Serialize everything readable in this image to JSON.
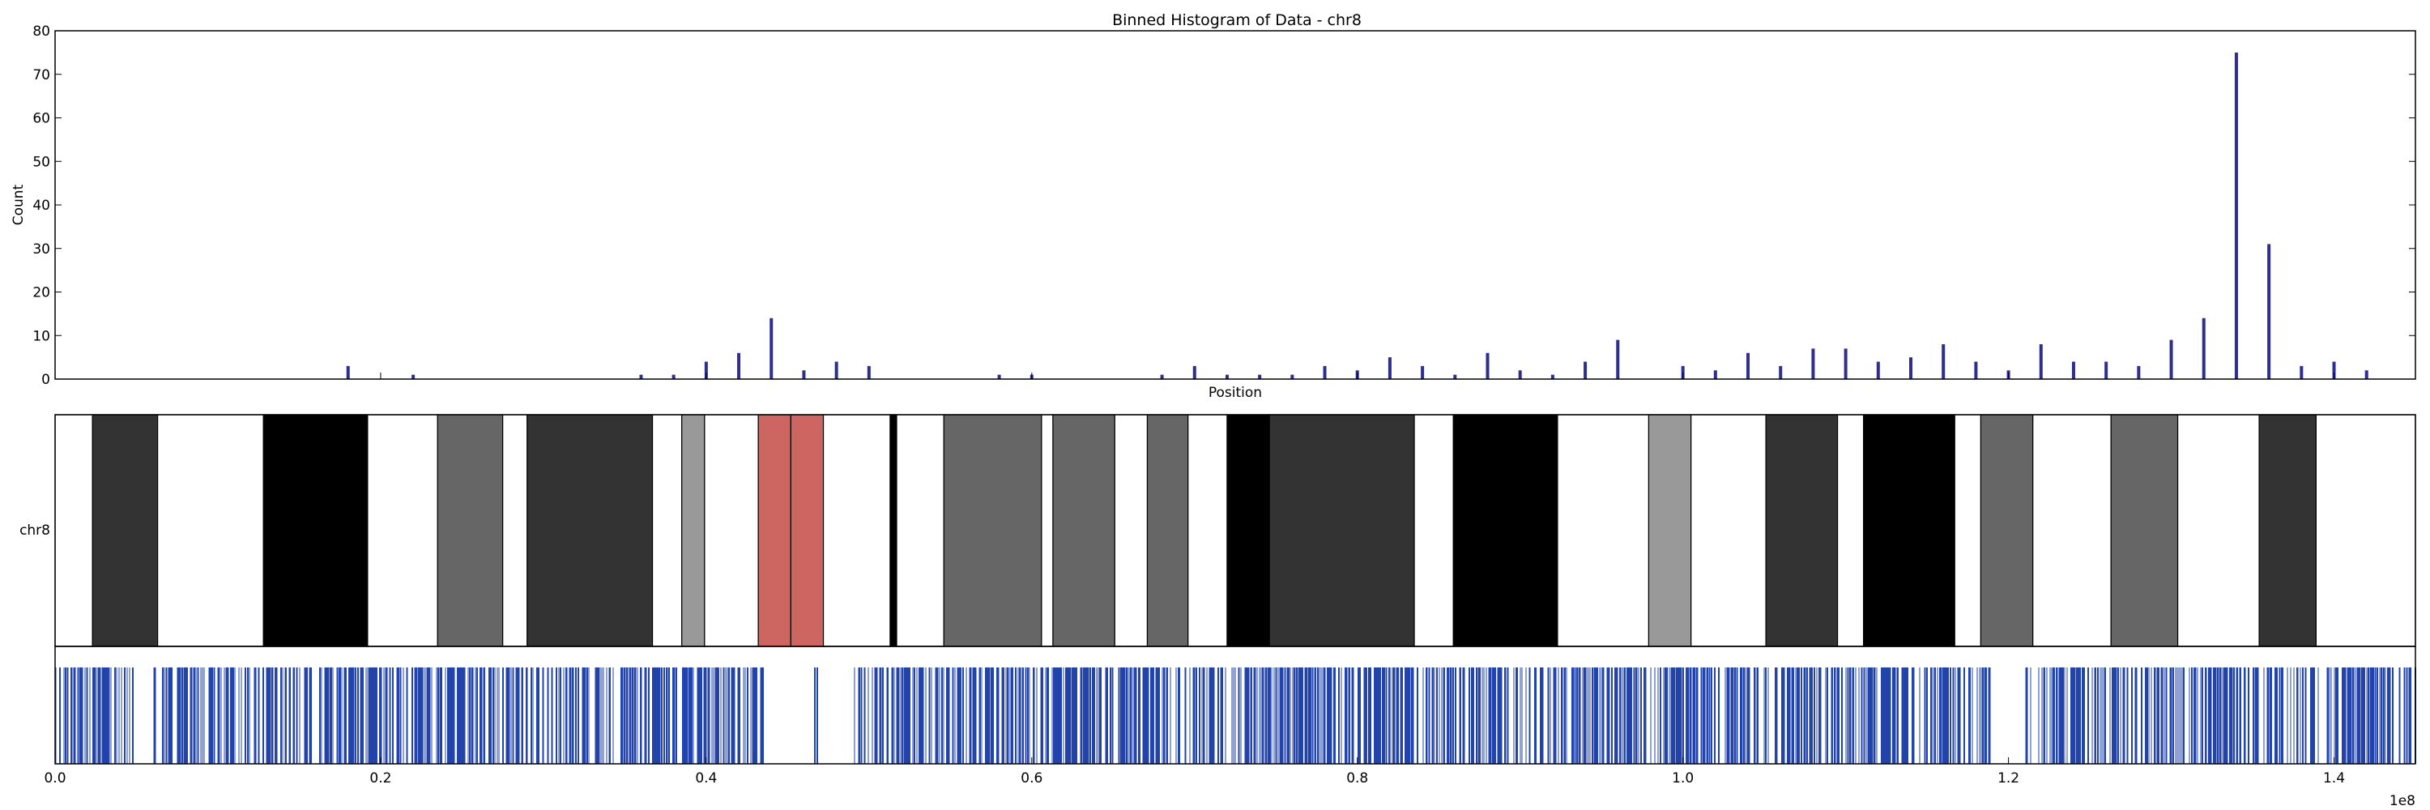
{
  "chart_data": {
    "type": "bar",
    "title": "Binned Histogram of Data - chr8",
    "xlabel": "Position",
    "ylabel": "Count",
    "chromosome_label": "chr8",
    "x_offset_label": "1e8",
    "xlim": [
      0,
      145000000
    ],
    "ylim": [
      0,
      80
    ],
    "y_ticks": [
      0,
      10,
      20,
      30,
      40,
      50,
      60,
      70,
      80
    ],
    "x_ticks": [
      0,
      20000000,
      40000000,
      60000000,
      80000000,
      100000000,
      120000000,
      140000000
    ],
    "x_tick_labels": [
      "0.0",
      "0.2",
      "0.4",
      "0.6",
      "0.8",
      "1.0",
      "1.2",
      "1.4"
    ],
    "bar_color": "#2e2e8f",
    "bins": [
      {
        "x": 18000000,
        "count": 3
      },
      {
        "x": 22000000,
        "count": 1
      },
      {
        "x": 36000000,
        "count": 1
      },
      {
        "x": 38000000,
        "count": 1
      },
      {
        "x": 40000000,
        "count": 4
      },
      {
        "x": 42000000,
        "count": 6
      },
      {
        "x": 44000000,
        "count": 14
      },
      {
        "x": 46000000,
        "count": 2
      },
      {
        "x": 48000000,
        "count": 4
      },
      {
        "x": 50000000,
        "count": 3
      },
      {
        "x": 58000000,
        "count": 1
      },
      {
        "x": 60000000,
        "count": 1
      },
      {
        "x": 68000000,
        "count": 1
      },
      {
        "x": 70000000,
        "count": 3
      },
      {
        "x": 72000000,
        "count": 1
      },
      {
        "x": 74000000,
        "count": 1
      },
      {
        "x": 76000000,
        "count": 1
      },
      {
        "x": 78000000,
        "count": 3
      },
      {
        "x": 80000000,
        "count": 2
      },
      {
        "x": 82000000,
        "count": 5
      },
      {
        "x": 84000000,
        "count": 3
      },
      {
        "x": 86000000,
        "count": 1
      },
      {
        "x": 88000000,
        "count": 6
      },
      {
        "x": 90000000,
        "count": 2
      },
      {
        "x": 92000000,
        "count": 1
      },
      {
        "x": 94000000,
        "count": 4
      },
      {
        "x": 96000000,
        "count": 9
      },
      {
        "x": 100000000,
        "count": 3
      },
      {
        "x": 102000000,
        "count": 2
      },
      {
        "x": 104000000,
        "count": 6
      },
      {
        "x": 106000000,
        "count": 3
      },
      {
        "x": 108000000,
        "count": 7
      },
      {
        "x": 110000000,
        "count": 7
      },
      {
        "x": 112000000,
        "count": 4
      },
      {
        "x": 114000000,
        "count": 5
      },
      {
        "x": 116000000,
        "count": 8
      },
      {
        "x": 118000000,
        "count": 4
      },
      {
        "x": 120000000,
        "count": 2
      },
      {
        "x": 122000000,
        "count": 8
      },
      {
        "x": 124000000,
        "count": 4
      },
      {
        "x": 126000000,
        "count": 4
      },
      {
        "x": 128000000,
        "count": 3
      },
      {
        "x": 130000000,
        "count": 9
      },
      {
        "x": 132000000,
        "count": 14
      },
      {
        "x": 134000000,
        "count": 75
      },
      {
        "x": 136000000,
        "count": 31
      },
      {
        "x": 138000000,
        "count": 3
      },
      {
        "x": 140000000,
        "count": 4
      },
      {
        "x": 142000000,
        "count": 2
      }
    ],
    "ideogram_bands": [
      {
        "start": 0,
        "end": 2300000,
        "color": "#ffffff"
      },
      {
        "start": 2300000,
        "end": 6300000,
        "color": "#333333"
      },
      {
        "start": 6300000,
        "end": 12800000,
        "color": "#ffffff"
      },
      {
        "start": 12800000,
        "end": 19200000,
        "color": "#000000"
      },
      {
        "start": 19200000,
        "end": 23500000,
        "color": "#ffffff"
      },
      {
        "start": 23500000,
        "end": 27500000,
        "color": "#666666"
      },
      {
        "start": 27500000,
        "end": 29000000,
        "color": "#ffffff"
      },
      {
        "start": 29000000,
        "end": 36700000,
        "color": "#333333"
      },
      {
        "start": 36700000,
        "end": 38500000,
        "color": "#ffffff"
      },
      {
        "start": 38500000,
        "end": 39900000,
        "color": "#999999"
      },
      {
        "start": 39900000,
        "end": 43200000,
        "color": "#ffffff"
      },
      {
        "start": 43200000,
        "end": 45200000,
        "color": "#cd6561"
      },
      {
        "start": 45200000,
        "end": 47200000,
        "color": "#cd6561"
      },
      {
        "start": 47200000,
        "end": 51300000,
        "color": "#ffffff"
      },
      {
        "start": 51300000,
        "end": 51700000,
        "color": "#000000"
      },
      {
        "start": 51700000,
        "end": 54600000,
        "color": "#ffffff"
      },
      {
        "start": 54600000,
        "end": 60600000,
        "color": "#666666"
      },
      {
        "start": 60600000,
        "end": 61300000,
        "color": "#ffffff"
      },
      {
        "start": 61300000,
        "end": 65100000,
        "color": "#666666"
      },
      {
        "start": 65100000,
        "end": 67100000,
        "color": "#ffffff"
      },
      {
        "start": 67100000,
        "end": 69600000,
        "color": "#666666"
      },
      {
        "start": 69600000,
        "end": 72000000,
        "color": "#ffffff"
      },
      {
        "start": 72000000,
        "end": 74600000,
        "color": "#000000"
      },
      {
        "start": 74600000,
        "end": 83500000,
        "color": "#333333"
      },
      {
        "start": 83500000,
        "end": 85900000,
        "color": "#ffffff"
      },
      {
        "start": 85900000,
        "end": 92300000,
        "color": "#000000"
      },
      {
        "start": 92300000,
        "end": 97900000,
        "color": "#ffffff"
      },
      {
        "start": 97900000,
        "end": 100500000,
        "color": "#999999"
      },
      {
        "start": 100500000,
        "end": 105100000,
        "color": "#ffffff"
      },
      {
        "start": 105100000,
        "end": 109500000,
        "color": "#333333"
      },
      {
        "start": 109500000,
        "end": 111100000,
        "color": "#ffffff"
      },
      {
        "start": 111100000,
        "end": 116700000,
        "color": "#000000"
      },
      {
        "start": 116700000,
        "end": 118300000,
        "color": "#ffffff"
      },
      {
        "start": 118300000,
        "end": 121500000,
        "color": "#666666"
      },
      {
        "start": 121500000,
        "end": 126300000,
        "color": "#ffffff"
      },
      {
        "start": 126300000,
        "end": 130400000,
        "color": "#666666"
      },
      {
        "start": 130400000,
        "end": 135400000,
        "color": "#ffffff"
      },
      {
        "start": 135400000,
        "end": 138900000,
        "color": "#333333"
      },
      {
        "start": 138900000,
        "end": 145000000,
        "color": "#ffffff"
      }
    ],
    "density_color": "#2244aa",
    "density_gaps": [
      [
        5000000,
        6000000
      ],
      [
        43500000,
        46500000
      ],
      [
        47000000,
        49000000
      ],
      [
        119000000,
        121000000
      ]
    ]
  }
}
